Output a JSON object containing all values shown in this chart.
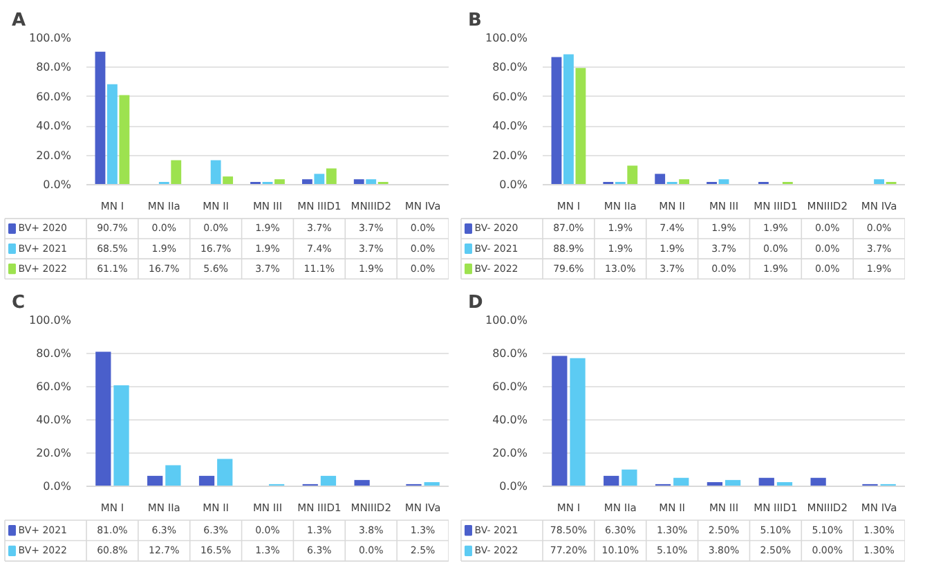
{
  "chart_data": [
    {
      "type": "bar",
      "title": "A",
      "categories": [
        "MN I",
        "MN IIa",
        "MN II",
        "MN III",
        "MN IIID1",
        "MNIIID2",
        "MN IVa"
      ],
      "ylim": [
        0,
        100
      ],
      "yticks": [
        {
          "value": 0,
          "label": "0.0%"
        },
        {
          "value": 20,
          "label": "20.0%"
        },
        {
          "value": 40,
          "label": "40.0%"
        },
        {
          "value": 60,
          "label": "60.0%"
        },
        {
          "value": 80,
          "label": "80.0%"
        },
        {
          "value": 100,
          "label": "100.0%"
        }
      ],
      "grid": "y",
      "legend": "bottom",
      "series": [
        {
          "name": "BV+ 2020",
          "color": "#4a5fcb",
          "values": [
            90.7,
            0.0,
            0.0,
            1.9,
            3.7,
            3.7,
            0.0
          ],
          "value_labels": [
            "90.7%",
            "0.0%",
            "0.0%",
            "1.9%",
            "3.7%",
            "3.7%",
            "0.0%"
          ]
        },
        {
          "name": "BV+ 2021",
          "color": "#5ccbf3",
          "values": [
            68.5,
            1.9,
            16.7,
            1.9,
            7.4,
            3.7,
            0.0
          ],
          "value_labels": [
            "68.5%",
            "1.9%",
            "16.7%",
            "1.9%",
            "7.4%",
            "3.7%",
            "0.0%"
          ]
        },
        {
          "name": "BV+ 2022",
          "color": "#9de24f",
          "values": [
            61.1,
            16.7,
            5.6,
            3.7,
            11.1,
            1.9,
            0.0
          ],
          "value_labels": [
            "61.1%",
            "16.7%",
            "5.6%",
            "3.7%",
            "11.1%",
            "1.9%",
            "0.0%"
          ]
        }
      ]
    },
    {
      "type": "bar",
      "title": "B",
      "categories": [
        "MN I",
        "MN IIa",
        "MN II",
        "MN III",
        "MN IIID1",
        "MNIIID2",
        "MN IVa"
      ],
      "ylim": [
        0,
        100
      ],
      "yticks": [
        {
          "value": 0,
          "label": "0.0%"
        },
        {
          "value": 20,
          "label": "20.0%"
        },
        {
          "value": 40,
          "label": "40.0%"
        },
        {
          "value": 60,
          "label": "60.0%"
        },
        {
          "value": 80,
          "label": "80.0%"
        },
        {
          "value": 100,
          "label": "100.0%"
        }
      ],
      "grid": "y",
      "legend": "bottom",
      "series": [
        {
          "name": "BV- 2020",
          "color": "#4a5fcb",
          "values": [
            87.0,
            1.9,
            7.4,
            1.9,
            1.9,
            0.0,
            0.0
          ],
          "value_labels": [
            "87.0%",
            "1.9%",
            "7.4%",
            "1.9%",
            "1.9%",
            "0.0%",
            "0.0%"
          ]
        },
        {
          "name": "BV- 2021",
          "color": "#5ccbf3",
          "values": [
            88.9,
            1.9,
            1.9,
            3.7,
            0.0,
            0.0,
            3.7
          ],
          "value_labels": [
            "88.9%",
            "1.9%",
            "1.9%",
            "3.7%",
            "0.0%",
            "0.0%",
            "3.7%"
          ]
        },
        {
          "name": "BV- 2022",
          "color": "#9de24f",
          "values": [
            79.6,
            13.0,
            3.7,
            0.0,
            1.9,
            0.0,
            1.9
          ],
          "value_labels": [
            "79.6%",
            "13.0%",
            "3.7%",
            "0.0%",
            "1.9%",
            "0.0%",
            "1.9%"
          ]
        }
      ]
    },
    {
      "type": "bar",
      "title": "C",
      "categories": [
        "MN I",
        "MN IIa",
        "MN II",
        "MN III",
        "MN IIID1",
        "MNIIID2",
        "MN IVa"
      ],
      "ylim": [
        0,
        100
      ],
      "yticks": [
        {
          "value": 0,
          "label": "0.0%"
        },
        {
          "value": 20,
          "label": "20.0%"
        },
        {
          "value": 40,
          "label": "40.0%"
        },
        {
          "value": 60,
          "label": "60.0%"
        },
        {
          "value": 80,
          "label": "80.0%"
        },
        {
          "value": 100,
          "label": "100.0%"
        }
      ],
      "grid": "y",
      "legend": "bottom",
      "series": [
        {
          "name": "BV+ 2021",
          "color": "#4a5fcb",
          "values": [
            81.0,
            6.3,
            6.3,
            0.0,
            1.3,
            3.8,
            1.3
          ],
          "value_labels": [
            "81.0%",
            "6.3%",
            "6.3%",
            "0.0%",
            "1.3%",
            "3.8%",
            "1.3%"
          ]
        },
        {
          "name": "BV+ 2022",
          "color": "#5ccbf3",
          "values": [
            60.8,
            12.7,
            16.5,
            1.3,
            6.3,
            0.0,
            2.5
          ],
          "value_labels": [
            "60.8%",
            "12.7%",
            "16.5%",
            "1.3%",
            "6.3%",
            "0.0%",
            "2.5%"
          ]
        }
      ]
    },
    {
      "type": "bar",
      "title": "D",
      "categories": [
        "MN I",
        "MN IIa",
        "MN II",
        "MN III",
        "MN IIID1",
        "MNIIID2",
        "MN IVa"
      ],
      "ylim": [
        0,
        100
      ],
      "yticks": [
        {
          "value": 0,
          "label": "0.0%"
        },
        {
          "value": 20,
          "label": "20.0%"
        },
        {
          "value": 40,
          "label": "40.0%"
        },
        {
          "value": 60,
          "label": "60.0%"
        },
        {
          "value": 80,
          "label": "80.0%"
        },
        {
          "value": 100,
          "label": "100.0%"
        }
      ],
      "grid": "y",
      "legend": "bottom",
      "series": [
        {
          "name": "BV- 2021",
          "color": "#4a5fcb",
          "values": [
            78.5,
            6.3,
            1.3,
            2.5,
            5.1,
            5.1,
            1.3
          ],
          "value_labels": [
            "78.50%",
            "6.30%",
            "1.30%",
            "2.50%",
            "5.10%",
            "5.10%",
            "1.30%"
          ]
        },
        {
          "name": "BV- 2022",
          "color": "#5ccbf3",
          "values": [
            77.2,
            10.1,
            5.1,
            3.8,
            2.5,
            0.0,
            1.3
          ],
          "value_labels": [
            "77.20%",
            "10.10%",
            "5.10%",
            "3.80%",
            "2.50%",
            "0.00%",
            "1.30%"
          ]
        }
      ]
    }
  ]
}
